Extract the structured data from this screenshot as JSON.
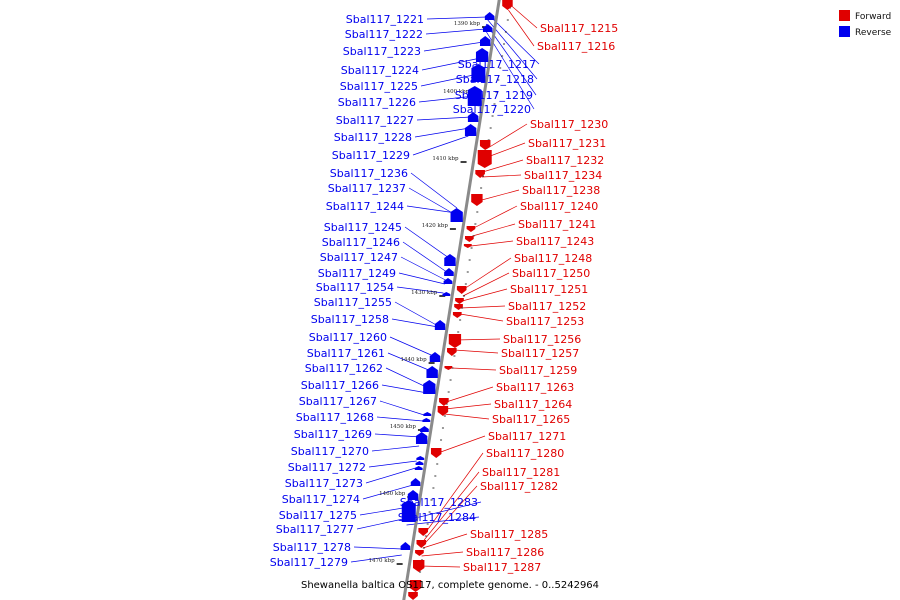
{
  "colors": {
    "forward": "#e00000",
    "reverse": "#0000ee",
    "backbone": "#8a8a8a"
  },
  "legend": {
    "forward_label": "Forward",
    "reverse_label": "Reverse"
  },
  "caption": "Shewanella baltica OS117, complete genome. - 0..5242964",
  "tick_labels": [
    "1390 kbp",
    "1400 kbp",
    "1410 kbp",
    "1420 kbp",
    "1430 kbp",
    "1440 kbp",
    "1450 kbp",
    "1460 kbp",
    "1470 kbp"
  ],
  "genes": [
    {
      "name": "Sbal117_1215",
      "strand": "forward"
    },
    {
      "name": "Sbal117_1216",
      "strand": "forward"
    },
    {
      "name": "Sbal117_1217",
      "strand": "reverse"
    },
    {
      "name": "Sbal117_1218",
      "strand": "reverse"
    },
    {
      "name": "Sbal117_1219",
      "strand": "reverse"
    },
    {
      "name": "Sbal117_1220",
      "strand": "reverse"
    },
    {
      "name": "Sbal117_1221",
      "strand": "reverse"
    },
    {
      "name": "Sbal117_1222",
      "strand": "reverse"
    },
    {
      "name": "Sbal117_1223",
      "strand": "reverse"
    },
    {
      "name": "Sbal117_1224",
      "strand": "reverse"
    },
    {
      "name": "Sbal117_1225",
      "strand": "reverse"
    },
    {
      "name": "Sbal117_1226",
      "strand": "reverse"
    },
    {
      "name": "Sbal117_1227",
      "strand": "reverse"
    },
    {
      "name": "Sbal117_1228",
      "strand": "reverse"
    },
    {
      "name": "Sbal117_1229",
      "strand": "reverse"
    },
    {
      "name": "Sbal117_1230",
      "strand": "forward"
    },
    {
      "name": "Sbal117_1231",
      "strand": "forward"
    },
    {
      "name": "Sbal117_1232",
      "strand": "forward"
    },
    {
      "name": "Sbal117_1234",
      "strand": "forward"
    },
    {
      "name": "Sbal117_1236",
      "strand": "reverse"
    },
    {
      "name": "Sbal117_1237",
      "strand": "reverse"
    },
    {
      "name": "Sbal117_1238",
      "strand": "forward"
    },
    {
      "name": "Sbal117_1240",
      "strand": "forward"
    },
    {
      "name": "Sbal117_1241",
      "strand": "forward"
    },
    {
      "name": "Sbal117_1243",
      "strand": "forward"
    },
    {
      "name": "Sbal117_1244",
      "strand": "reverse"
    },
    {
      "name": "Sbal117_1245",
      "strand": "reverse"
    },
    {
      "name": "Sbal117_1246",
      "strand": "reverse"
    },
    {
      "name": "Sbal117_1247",
      "strand": "reverse"
    },
    {
      "name": "Sbal117_1248",
      "strand": "forward"
    },
    {
      "name": "Sbal117_1249",
      "strand": "reverse"
    },
    {
      "name": "Sbal117_1250",
      "strand": "forward"
    },
    {
      "name": "Sbal117_1251",
      "strand": "forward"
    },
    {
      "name": "Sbal117_1252",
      "strand": "forward"
    },
    {
      "name": "Sbal117_1253",
      "strand": "forward"
    },
    {
      "name": "Sbal117_1254",
      "strand": "reverse"
    },
    {
      "name": "Sbal117_1255",
      "strand": "reverse"
    },
    {
      "name": "Sbal117_1256",
      "strand": "forward"
    },
    {
      "name": "Sbal117_1257",
      "strand": "forward"
    },
    {
      "name": "Sbal117_1258",
      "strand": "reverse"
    },
    {
      "name": "Sbal117_1259",
      "strand": "forward"
    },
    {
      "name": "Sbal117_1260",
      "strand": "reverse"
    },
    {
      "name": "Sbal117_1261",
      "strand": "reverse"
    },
    {
      "name": "Sbal117_1262",
      "strand": "reverse"
    },
    {
      "name": "Sbal117_1263",
      "strand": "forward"
    },
    {
      "name": "Sbal117_1264",
      "strand": "forward"
    },
    {
      "name": "Sbal117_1265",
      "strand": "forward"
    },
    {
      "name": "Sbal117_1266",
      "strand": "reverse"
    },
    {
      "name": "Sbal117_1267",
      "strand": "reverse"
    },
    {
      "name": "Sbal117_1268",
      "strand": "reverse"
    },
    {
      "name": "Sbal117_1269",
      "strand": "reverse"
    },
    {
      "name": "Sbal117_1270",
      "strand": "reverse"
    },
    {
      "name": "Sbal117_1271",
      "strand": "forward"
    },
    {
      "name": "Sbal117_1272",
      "strand": "reverse"
    },
    {
      "name": "Sbal117_1273",
      "strand": "reverse"
    },
    {
      "name": "Sbal117_1274",
      "strand": "reverse"
    },
    {
      "name": "Sbal117_1275",
      "strand": "reverse"
    },
    {
      "name": "Sbal117_1277",
      "strand": "reverse"
    },
    {
      "name": "Sbal117_1278",
      "strand": "reverse"
    },
    {
      "name": "Sbal117_1279",
      "strand": "reverse"
    },
    {
      "name": "Sbal117_1280",
      "strand": "forward"
    },
    {
      "name": "Sbal117_1281",
      "strand": "forward"
    },
    {
      "name": "Sbal117_1282",
      "strand": "forward"
    },
    {
      "name": "Sbal117_1283",
      "strand": "reverse"
    },
    {
      "name": "Sbal117_1284",
      "strand": "reverse"
    },
    {
      "name": "Sbal117_1285",
      "strand": "forward"
    },
    {
      "name": "Sbal117_1286",
      "strand": "forward"
    },
    {
      "name": "Sbal117_1287",
      "strand": "forward"
    }
  ]
}
